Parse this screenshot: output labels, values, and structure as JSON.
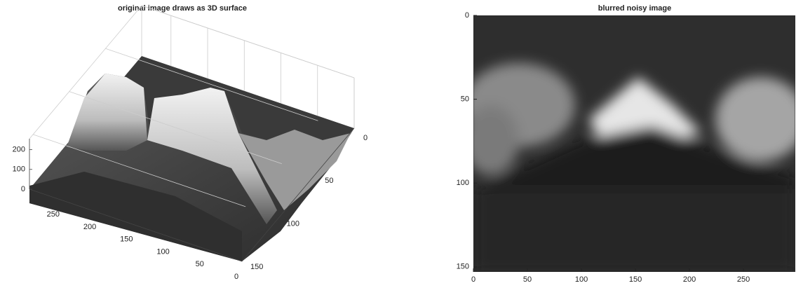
{
  "chart_data": [
    {
      "type": "surface",
      "title": "original image draws as 3D surface",
      "xlim": [
        0,
        290
      ],
      "ylim": [
        0,
        155
      ],
      "zlim": [
        0,
        255
      ],
      "xticks": [
        0,
        50,
        100,
        150,
        200,
        250
      ],
      "yticks": [
        0,
        50,
        100,
        150
      ],
      "zticks": [
        0,
        100,
        200
      ]
    },
    {
      "type": "image",
      "title": "blurred noisy image",
      "xlim": [
        0,
        298
      ],
      "ylim": [
        0,
        153
      ],
      "xticks": [
        0,
        50,
        100,
        150,
        200,
        250
      ],
      "yticks": [
        0,
        50,
        100,
        150
      ]
    }
  ]
}
